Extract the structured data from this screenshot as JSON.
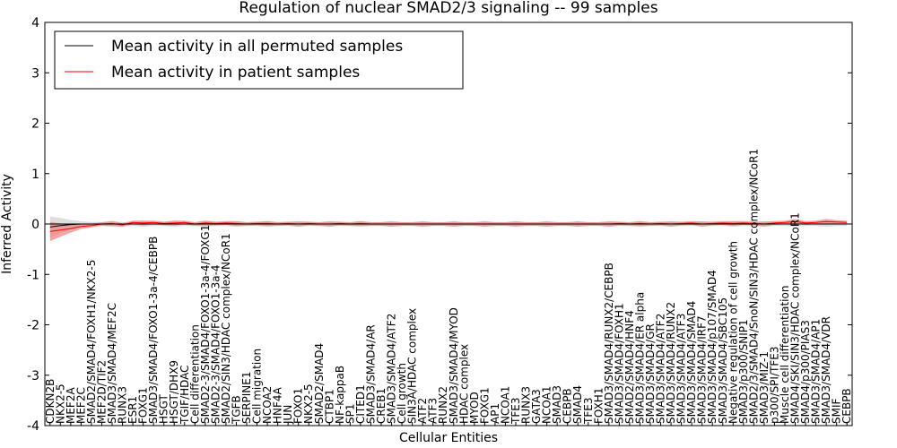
{
  "chart_data": {
    "type": "line",
    "title": "Regulation of nuclear SMAD2/3 signaling -- 99 samples",
    "xlabel": "Cellular Entities",
    "ylabel": "Inferred Activity",
    "ylim": [
      -4,
      4
    ],
    "yticks": [
      -4,
      -3,
      -2,
      -1,
      0,
      1,
      2,
      3,
      4
    ],
    "grid": false,
    "legend_position": "top-left",
    "colors": {
      "permuted": "#000000",
      "patient": "#ff0000",
      "band": "#f08080",
      "band_grey": "#c8c8c8"
    },
    "categories": [
      "CDKN2B",
      "NKX2-5",
      "MEF2A",
      "MEF2C",
      "SMAD2/SMAD4/FOXH1/NKX2-5",
      "MEF2D/TIF2",
      "SMAD3/SMAD4/MEF2C",
      "RUNX3",
      "ESR1",
      "FOXG1",
      "SMAD3/SMAD4/FOXO1-3a-4/CEBPB",
      "HSGT",
      "HSGT/DHX9",
      "TGIF/HDAC",
      "Cell differentiation",
      "SMAD2-3/SMAD4/FOXO1-3a-4/FOXG1",
      "SMAD2-3/SMAD4/FOXO1-3a-4",
      "SMAD2/SIN3/HDAC complex/NCoR1",
      "TGFB",
      "SERPINE1",
      "Cell migration",
      "NCOA2",
      "HNF4A",
      "JUN",
      "FOXO1",
      "NKX2-5",
      "SMAD2/SMAD4",
      "CTBP1",
      "NF-kappaB",
      "SP1",
      "CITED1",
      "SMAD3/SMAD4/AR",
      "CREB1",
      "SMAD3/SMAD4/ATF2",
      "Cell growth",
      "SIN3A/HDAC complex",
      "ATF2",
      "ATF3",
      "RUNX2",
      "SMAD3/SMAD4/MYOD",
      "HDAC complex",
      "MYOD",
      "FOXG1",
      "AP1",
      "NCOA1",
      "TFE3",
      "RUNX3",
      "GATA3",
      "NCOA1",
      "SMAD3",
      "CEBPB",
      "SMAD4",
      "TFE3",
      "FOXH1",
      "SMAD3/SMAD4/RUNX2/CEBPB",
      "SMAD3/SMAD4/FOXH1",
      "SMAD2/SMAD4/HNF4",
      "SMAD3/SMAD4/ER alpha",
      "SMAD3/SMAD4/GR",
      "SMAD3/SMAD4/ATF2",
      "SMAD3/SMAD4/RUNX2",
      "SMAD3/SMAD4/ATF3",
      "SMAD3/SMAD4/SMAD4",
      "SMAD3/SMAD4/IRF7",
      "SMAD3/SMAD4/p107/SMAD4",
      "SMAD3/SMAD4/SBC105",
      "Negative regulation of cell growth",
      "SMAD3/p300/SNIP1",
      "SMAD2/3/SMAD4/SnoN/SIN3/HDAC complex/NCoR1",
      "SMAD3/MIZ-1",
      "p300/SPI/TFE3",
      "Muscle cell differentiation",
      "SMAD4/SKI/SIN3/HDAC complex/NCoR1",
      "SMAD4/p300/PIAS3",
      "SMAD3/SMAD4/AP1",
      "SMAD3/SMAD4/VDR",
      "SMIF",
      "CEBPB"
    ],
    "series": [
      {
        "name": "Mean activity in all permuted samples",
        "values": [
          -0.06,
          -0.03,
          -0.01,
          0,
          0,
          0,
          0,
          0,
          0,
          0,
          0,
          0,
          0,
          0,
          0,
          0,
          0,
          0,
          0,
          0,
          0,
          0,
          0,
          0,
          0,
          0,
          0,
          0,
          0,
          0,
          0,
          0,
          0,
          0,
          0,
          0,
          0,
          0,
          0,
          0,
          0,
          0,
          0,
          0,
          0,
          0,
          0,
          0,
          0,
          0,
          0,
          0,
          0,
          0,
          0,
          0,
          0,
          0,
          0,
          0,
          0,
          0,
          0,
          0,
          0,
          0,
          0,
          0,
          0,
          0,
          0,
          0,
          0,
          0,
          0,
          0,
          0,
          0
        ]
      },
      {
        "name": "Mean activity in patient samples",
        "values": [
          -0.15,
          -0.12,
          -0.09,
          -0.05,
          -0.03,
          0,
          0.01,
          -0.02,
          0.03,
          0.02,
          0.03,
          0.01,
          0.02,
          0.03,
          0,
          0.02,
          0.01,
          0.02,
          0.01,
          0,
          0.01,
          0.01,
          0,
          0.01,
          0,
          0.01,
          0,
          0,
          0.01,
          0,
          0.01,
          0,
          0,
          0,
          0,
          0,
          0,
          0,
          0,
          0,
          0,
          0,
          0,
          0,
          0,
          0,
          0,
          0,
          0,
          0,
          0,
          0,
          0,
          0,
          0,
          0.01,
          0,
          0.01,
          0,
          0.01,
          0,
          0.01,
          0.02,
          0,
          0.01,
          0.02,
          0.01,
          0.02,
          0.01,
          0,
          0.02,
          0.03,
          0.05,
          0.02,
          0.03,
          0.05,
          0.04,
          0.03
        ]
      }
    ]
  }
}
